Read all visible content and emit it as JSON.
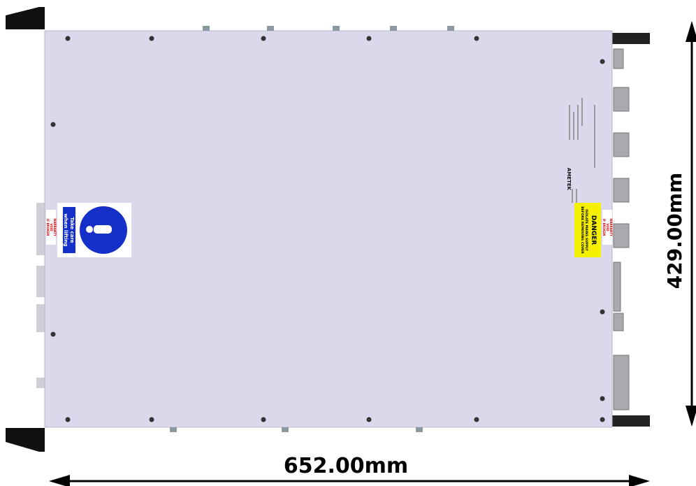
{
  "dimensions": {
    "width": "652.00mm",
    "height": "429.00mm"
  },
  "labels": {
    "lifting": [
      "Take care",
      "when lifting"
    ],
    "danger": {
      "title": "DANGER",
      "lines": [
        "ISOLATE MAINS SUPPLY",
        "BEFORE REMOVING COVER"
      ]
    },
    "warranty_left": [
      "WARRANTY",
      "VOID",
      "IF BROKEN"
    ],
    "warranty_right": [
      "WARRANTY",
      "VOID",
      "IF BROKEN"
    ],
    "brand": "AMETEK"
  }
}
